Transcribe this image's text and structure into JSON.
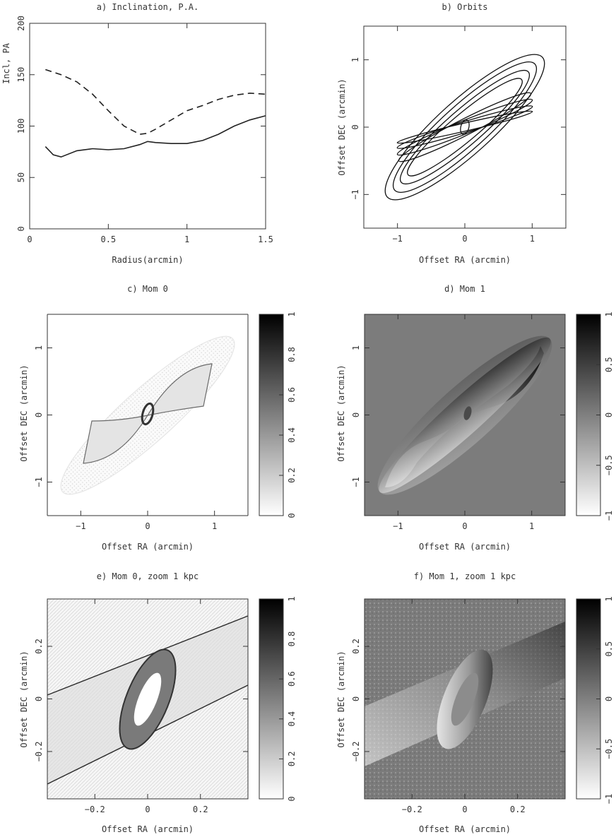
{
  "panels": [
    {
      "id": "a",
      "title": "a) Inclination, P.A.",
      "xlabel": "Radius(arcmin)",
      "ylabel": "Incl, PA",
      "xticks": [
        "0",
        "0.5",
        "1",
        "1.5"
      ],
      "yticks": [
        "0",
        "50",
        "100",
        "150",
        "200"
      ]
    },
    {
      "id": "b",
      "title": "b) Orbits",
      "xlabel": "Offset RA (arcmin)",
      "ylabel": "Offset DEC (arcmin)",
      "xticks": [
        "−1",
        "0",
        "1"
      ],
      "yticks": [
        "−1",
        "0",
        "1"
      ]
    },
    {
      "id": "c",
      "title": "c) Mom 0",
      "xlabel": "Offset RA (arcmin)",
      "ylabel": "Offset DEC (arcmin)",
      "xticks": [
        "−1",
        "0",
        "1"
      ],
      "yticks": [
        "−1",
        "0",
        "1"
      ],
      "colorbar_ticks": [
        "0",
        "0.2",
        "0.4",
        "0.6",
        "0.8",
        "1"
      ]
    },
    {
      "id": "d",
      "title": "d) Mom 1",
      "xlabel": "Offset RA (arcmin)",
      "ylabel": "Offset DEC (arcmin)",
      "xticks": [
        "−1",
        "0",
        "1"
      ],
      "yticks": [
        "−1",
        "0",
        "1"
      ],
      "colorbar_ticks": [
        "−1",
        "−0.5",
        "0",
        "0.5",
        "1"
      ]
    },
    {
      "id": "e",
      "title": "e) Mom 0, zoom 1 kpc",
      "xlabel": "Offset RA (arcmin)",
      "ylabel": "Offset DEC (arcmin)",
      "xticks": [
        "−0.2",
        "0",
        "0.2"
      ],
      "yticks": [
        "−0.2",
        "0",
        "0.2"
      ],
      "colorbar_ticks": [
        "0",
        "0.2",
        "0.4",
        "0.6",
        "0.8",
        "1"
      ]
    },
    {
      "id": "f",
      "title": "f) Mom 1, zoom 1 kpc",
      "xlabel": "Offset RA (arcmin)",
      "ylabel": "Offset DEC (arcmin)",
      "xticks": [
        "−0.2",
        "0",
        "0.2"
      ],
      "yticks": [
        "−0.2",
        "0",
        "0.2"
      ],
      "colorbar_ticks": [
        "−1",
        "−0.5",
        "0",
        "0.5",
        "1"
      ]
    }
  ],
  "chart_data": [
    {
      "panel": "a",
      "type": "line",
      "title": "a) Inclination, P.A.",
      "xlabel": "Radius(arcmin)",
      "ylabel": "Incl, PA",
      "xlim": [
        0,
        1.5
      ],
      "ylim": [
        0,
        200
      ],
      "series": [
        {
          "style": "solid",
          "x": [
            0.1,
            0.15,
            0.2,
            0.3,
            0.4,
            0.5,
            0.6,
            0.7,
            0.75,
            0.8,
            0.9,
            1.0,
            1.1,
            1.2,
            1.3,
            1.4,
            1.5
          ],
          "y": [
            80,
            72,
            70,
            76,
            78,
            77,
            78,
            82,
            85,
            84,
            83,
            83,
            86,
            92,
            100,
            106,
            110
          ]
        },
        {
          "style": "dashed",
          "x": [
            0.1,
            0.2,
            0.3,
            0.4,
            0.5,
            0.6,
            0.7,
            0.75,
            0.8,
            0.9,
            1.0,
            1.1,
            1.2,
            1.3,
            1.4,
            1.5
          ],
          "y": [
            155,
            150,
            143,
            131,
            115,
            100,
            92,
            93,
            97,
            106,
            115,
            120,
            126,
            130,
            132,
            131
          ]
        }
      ]
    },
    {
      "panel": "b",
      "type": "line",
      "title": "b) Orbits",
      "xlabel": "Offset RA (arcmin)",
      "ylabel": "Offset DEC (arcmin)",
      "xlim": [
        -1.5,
        1.5
      ],
      "ylim": [
        -1.5,
        1.5
      ],
      "orbits": [
        {
          "a": 1.55,
          "b": 0.4,
          "pa_deg": 42
        },
        {
          "a": 1.4,
          "b": 0.33,
          "pa_deg": 42
        },
        {
          "a": 1.25,
          "b": 0.26,
          "pa_deg": 41
        },
        {
          "a": 1.1,
          "b": 0.2,
          "pa_deg": 40
        },
        {
          "a": 1.1,
          "b": 0.12,
          "pa_deg": 27
        },
        {
          "a": 1.08,
          "b": 0.1,
          "pa_deg": 22
        },
        {
          "a": 1.05,
          "b": 0.08,
          "pa_deg": 17
        },
        {
          "a": 1.03,
          "b": 0.06,
          "pa_deg": 13
        },
        {
          "a": 0.11,
          "b": 0.06,
          "pa_deg": 75
        }
      ]
    },
    {
      "panel": "c",
      "type": "heatmap",
      "title": "c) Mom 0",
      "xlabel": "Offset RA (arcmin)",
      "ylabel": "Offset DEC (arcmin)",
      "xlim": [
        -1.5,
        1.5
      ],
      "ylim": [
        -1.5,
        1.5
      ],
      "colorbar_range": [
        0,
        1
      ]
    },
    {
      "panel": "d",
      "type": "heatmap",
      "title": "d) Mom 1",
      "xlabel": "Offset RA (arcmin)",
      "ylabel": "Offset DEC (arcmin)",
      "xlim": [
        -1.5,
        1.5
      ],
      "ylim": [
        -1.5,
        1.5
      ],
      "colorbar_range": [
        -1,
        1
      ]
    },
    {
      "panel": "e",
      "type": "heatmap",
      "title": "e) Mom 0, zoom 1 kpc",
      "xlabel": "Offset RA (arcmin)",
      "ylabel": "Offset DEC (arcmin)",
      "xlim": [
        -0.38,
        0.38
      ],
      "ylim": [
        -0.38,
        0.38
      ],
      "colorbar_range": [
        0,
        1
      ]
    },
    {
      "panel": "f",
      "type": "heatmap",
      "title": "f) Mom 1, zoom 1 kpc",
      "xlabel": "Offset RA (arcmin)",
      "ylabel": "Offset DEC (arcmin)",
      "xlim": [
        -0.38,
        0.38
      ],
      "ylim": [
        -0.38,
        0.38
      ],
      "colorbar_range": [
        -1,
        1
      ]
    }
  ]
}
